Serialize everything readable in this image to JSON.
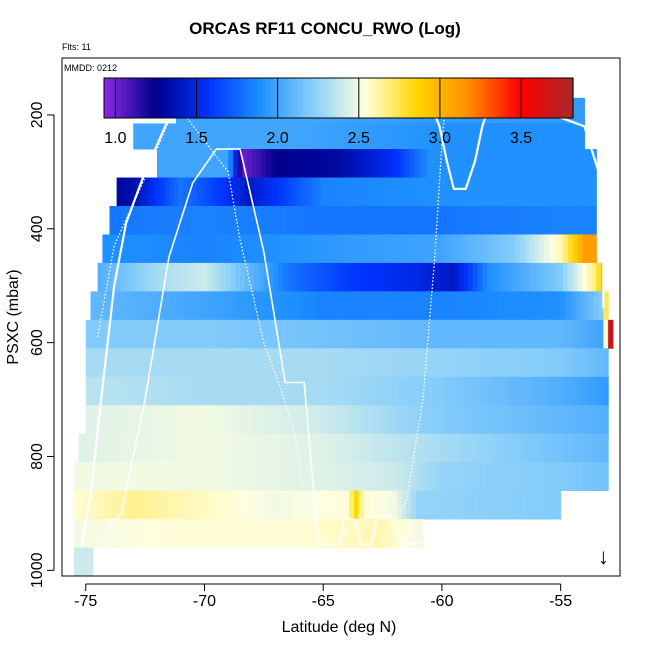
{
  "chart_data": {
    "type": "heatmap",
    "title": "ORCAS RF11 CONCU_RWO (Log)",
    "subtitle": "Flts: 11",
    "annotation": "MMDD: 0212",
    "xlabel": "Latitude (deg N)",
    "ylabel": "PSXC (mbar)",
    "xlim": [
      -76.0,
      -52.5
    ],
    "ylim": [
      1010,
      100
    ],
    "x_ticks": [
      -75,
      -70,
      -65,
      -60,
      -55
    ],
    "y_ticks": [
      200,
      400,
      600,
      800,
      1000
    ],
    "colorbar": {
      "range": [
        0.93,
        3.82
      ],
      "ticks": [
        1.0,
        1.5,
        2.0,
        2.5,
        3.0,
        3.5
      ],
      "stops": [
        "#8a2be2",
        "#00008b",
        "#0033ff",
        "#1e90ff",
        "#87cefa",
        "#ffffe0",
        "#ffd700",
        "#ff8c00",
        "#ff0000",
        "#a52a2a"
      ]
    },
    "pressure_bins": [
      {
        "p_top": 170,
        "p_bottom": 215,
        "x_start": -71.2,
        "x_end": -54.0,
        "values": [
          [
            -71.2,
            2.0
          ],
          [
            -65,
            2.0
          ],
          [
            -60,
            1.95
          ],
          [
            -55,
            1.95
          ]
        ]
      },
      {
        "p_top": 215,
        "p_bottom": 260,
        "x_start": -73.0,
        "x_end": -54.0,
        "values": [
          [
            -73,
            2.0
          ],
          [
            -66,
            2.0
          ],
          [
            -60,
            1.9
          ],
          [
            -55,
            1.9
          ]
        ]
      },
      {
        "p_top": 260,
        "p_bottom": 310,
        "x_start": -72.0,
        "x_end": -53.5,
        "values": [
          [
            -72,
            2.0
          ],
          [
            -69,
            2.0
          ],
          [
            -68.4,
            1.0
          ],
          [
            -67,
            1.25
          ],
          [
            -64.5,
            1.3
          ],
          [
            -62,
            1.55
          ],
          [
            -60.5,
            1.9
          ],
          [
            -55,
            1.9
          ]
        ]
      },
      {
        "p_top": 310,
        "p_bottom": 360,
        "x_start": -73.7,
        "x_end": -53.5,
        "values": [
          [
            -73.7,
            1.3
          ],
          [
            -73.0,
            1.35
          ],
          [
            -71,
            1.8
          ],
          [
            -68.6,
            1.5
          ],
          [
            -68.2,
            1.4
          ],
          [
            -65,
            1.85
          ],
          [
            -60,
            1.9
          ],
          [
            -55,
            1.9
          ]
        ]
      },
      {
        "p_top": 360,
        "p_bottom": 410,
        "x_start": -74.0,
        "x_end": -53.5,
        "values": [
          [
            -74,
            1.8
          ],
          [
            -70,
            1.85
          ],
          [
            -65,
            1.8
          ],
          [
            -60,
            1.8
          ],
          [
            -55,
            1.85
          ]
        ]
      },
      {
        "p_top": 410,
        "p_bottom": 460,
        "x_start": -74.3,
        "x_end": -53.5,
        "values": [
          [
            -74.3,
            1.9
          ],
          [
            -70,
            1.85
          ],
          [
            -64,
            1.95
          ],
          [
            -60,
            2.0
          ],
          [
            -57,
            2.2
          ],
          [
            -55,
            2.6
          ],
          [
            -54,
            3.1
          ]
        ]
      },
      {
        "p_top": 460,
        "p_bottom": 510,
        "x_start": -74.5,
        "x_end": -53.2,
        "values": [
          [
            -74.5,
            2.05
          ],
          [
            -72,
            2.3
          ],
          [
            -70,
            2.4
          ],
          [
            -67.5,
            2.0
          ],
          [
            -66.5,
            1.8
          ],
          [
            -64,
            1.6
          ],
          [
            -61,
            1.5
          ],
          [
            -59.5,
            1.4
          ],
          [
            -58,
            1.9
          ],
          [
            -55,
            2.2
          ],
          [
            -53.5,
            2.7
          ],
          [
            -53.2,
            3.0
          ]
        ]
      },
      {
        "p_top": 510,
        "p_bottom": 560,
        "x_start": -74.8,
        "x_end": -53.0,
        "values": [
          [
            -74.8,
            2.1
          ],
          [
            -70,
            2.0
          ],
          [
            -65,
            1.85
          ],
          [
            -60,
            1.85
          ],
          [
            -55,
            1.9
          ],
          [
            -53.3,
            2.2
          ],
          [
            -53.0,
            3.0
          ]
        ]
      },
      {
        "p_top": 560,
        "p_bottom": 610,
        "x_start": -75.0,
        "x_end": -52.8,
        "values": [
          [
            -75,
            2.2
          ],
          [
            -70,
            2.2
          ],
          [
            -65,
            2.15
          ],
          [
            -60,
            2.1
          ],
          [
            -55,
            2.1
          ],
          [
            -53.2,
            2.0
          ],
          [
            -52.9,
            3.7
          ]
        ]
      },
      {
        "p_top": 610,
        "p_bottom": 660,
        "x_start": -75.0,
        "x_end": -53.0,
        "values": [
          [
            -75,
            2.3
          ],
          [
            -70,
            2.3
          ],
          [
            -65,
            2.3
          ],
          [
            -60,
            2.25
          ],
          [
            -55,
            2.2
          ],
          [
            -53,
            2.1
          ]
        ]
      },
      {
        "p_top": 660,
        "p_bottom": 710,
        "x_start": -75.0,
        "x_end": -53.0,
        "values": [
          [
            -75,
            2.35
          ],
          [
            -70,
            2.3
          ],
          [
            -65,
            2.3
          ],
          [
            -60,
            2.2
          ],
          [
            -55,
            2.05
          ],
          [
            -53,
            1.95
          ]
        ]
      },
      {
        "p_top": 710,
        "p_bottom": 760,
        "x_start": -75.0,
        "x_end": -53.0,
        "values": [
          [
            -75,
            2.45
          ],
          [
            -70,
            2.5
          ],
          [
            -65,
            2.4
          ],
          [
            -60,
            2.2
          ],
          [
            -55,
            2.1
          ],
          [
            -53,
            2.05
          ]
        ]
      },
      {
        "p_top": 760,
        "p_bottom": 810,
        "x_start": -75.3,
        "x_end": -53.0,
        "values": [
          [
            -75.3,
            2.45
          ],
          [
            -70,
            2.5
          ],
          [
            -65,
            2.45
          ],
          [
            -60,
            2.3
          ],
          [
            -55,
            2.15
          ],
          [
            -53,
            2.1
          ]
        ]
      },
      {
        "p_top": 810,
        "p_bottom": 860,
        "x_start": -75.5,
        "x_end": -53.0,
        "values": [
          [
            -75.5,
            2.5
          ],
          [
            -70,
            2.5
          ],
          [
            -65,
            2.45
          ],
          [
            -62,
            2.4
          ],
          [
            -60,
            2.25
          ],
          [
            -55,
            2.2
          ],
          [
            -53,
            2.15
          ]
        ]
      },
      {
        "p_top": 860,
        "p_bottom": 910,
        "x_start": -75.5,
        "x_end": -55.0,
        "values": [
          [
            -75.5,
            2.55
          ],
          [
            -73,
            2.65
          ],
          [
            -71,
            2.6
          ],
          [
            -67,
            2.5
          ],
          [
            -64.0,
            2.55
          ],
          [
            -63.6,
            2.85
          ],
          [
            -63.3,
            2.55
          ],
          [
            -62,
            2.5
          ],
          [
            -61,
            2.25
          ],
          [
            -55,
            2.2
          ]
        ]
      },
      {
        "p_top": 910,
        "p_bottom": 960,
        "x_start": -75.5,
        "x_end": -60.8,
        "values": [
          [
            -75.5,
            2.5
          ],
          [
            -71,
            2.55
          ],
          [
            -66,
            2.55
          ],
          [
            -62.5,
            2.6
          ],
          [
            -61,
            2.5
          ]
        ]
      },
      {
        "p_top": 960,
        "p_bottom": 1010,
        "x_start": -75.5,
        "x_end": -74.7,
        "values": [
          [
            -75.5,
            2.4
          ],
          [
            -74.7,
            2.4
          ]
        ]
      }
    ],
    "flight_track": [
      [
        -75.2,
        960
      ],
      [
        -74.8,
        870
      ],
      [
        -74.3,
        680
      ],
      [
        -73.8,
        500
      ],
      [
        -73.3,
        390
      ],
      [
        -72.5,
        300
      ],
      [
        -71.6,
        215
      ],
      [
        -71.3,
        180
      ],
      [
        -66.0,
        180
      ],
      [
        -61.0,
        178
      ],
      [
        -60.5,
        178
      ],
      [
        -60.1,
        220
      ],
      [
        -59.8,
        280
      ],
      [
        -59.5,
        330
      ],
      [
        -59.0,
        330
      ],
      [
        -58.6,
        280
      ],
      [
        -58.3,
        220
      ],
      [
        -58.0,
        182
      ],
      [
        -56.5,
        182
      ],
      [
        -54.0,
        220
      ],
      [
        -53.4,
        300
      ],
      [
        -53.2,
        450
      ],
      [
        -53.2,
        540
      ]
    ],
    "flight_track_dotted": [
      [
        -74.5,
        590
      ],
      [
        -73.8,
        430
      ],
      [
        -72.5,
        310
      ],
      [
        -71.6,
        220
      ],
      [
        -71.2,
        180
      ],
      [
        -69.0,
        300
      ],
      [
        -68.5,
        420
      ],
      [
        -67.5,
        600
      ],
      [
        -66.8,
        680
      ],
      [
        -66.2,
        760
      ],
      [
        -65.5,
        950
      ],
      [
        -64.5,
        955
      ],
      [
        -63.5,
        905
      ],
      [
        -62.5,
        950
      ],
      [
        -61.5,
        880
      ],
      [
        -60.8,
        700
      ],
      [
        -60.3,
        450
      ],
      [
        -60.0,
        250
      ],
      [
        -59.9,
        200
      ]
    ],
    "flight_track_secondary": [
      [
        -74.5,
        950
      ],
      [
        -73.5,
        900
      ],
      [
        -72.5,
        700
      ],
      [
        -71.5,
        450
      ],
      [
        -70.5,
        320
      ],
      [
        -69.5,
        260
      ],
      [
        -68.5,
        260
      ],
      [
        -67.5,
        440
      ],
      [
        -66.6,
        670
      ],
      [
        -65.8,
        670
      ],
      [
        -65.2,
        955
      ],
      [
        -64.3,
        955
      ],
      [
        -64.1,
        910
      ],
      [
        -63.7,
        910
      ],
      [
        -63.4,
        955
      ],
      [
        -63.0,
        955
      ],
      [
        -62.7,
        905
      ],
      [
        -62.2,
        905
      ],
      [
        -61.6,
        955
      ],
      [
        -60.8,
        950
      ]
    ],
    "marker": {
      "symbol": "↓",
      "lat": -53.2,
      "p": 975
    }
  }
}
